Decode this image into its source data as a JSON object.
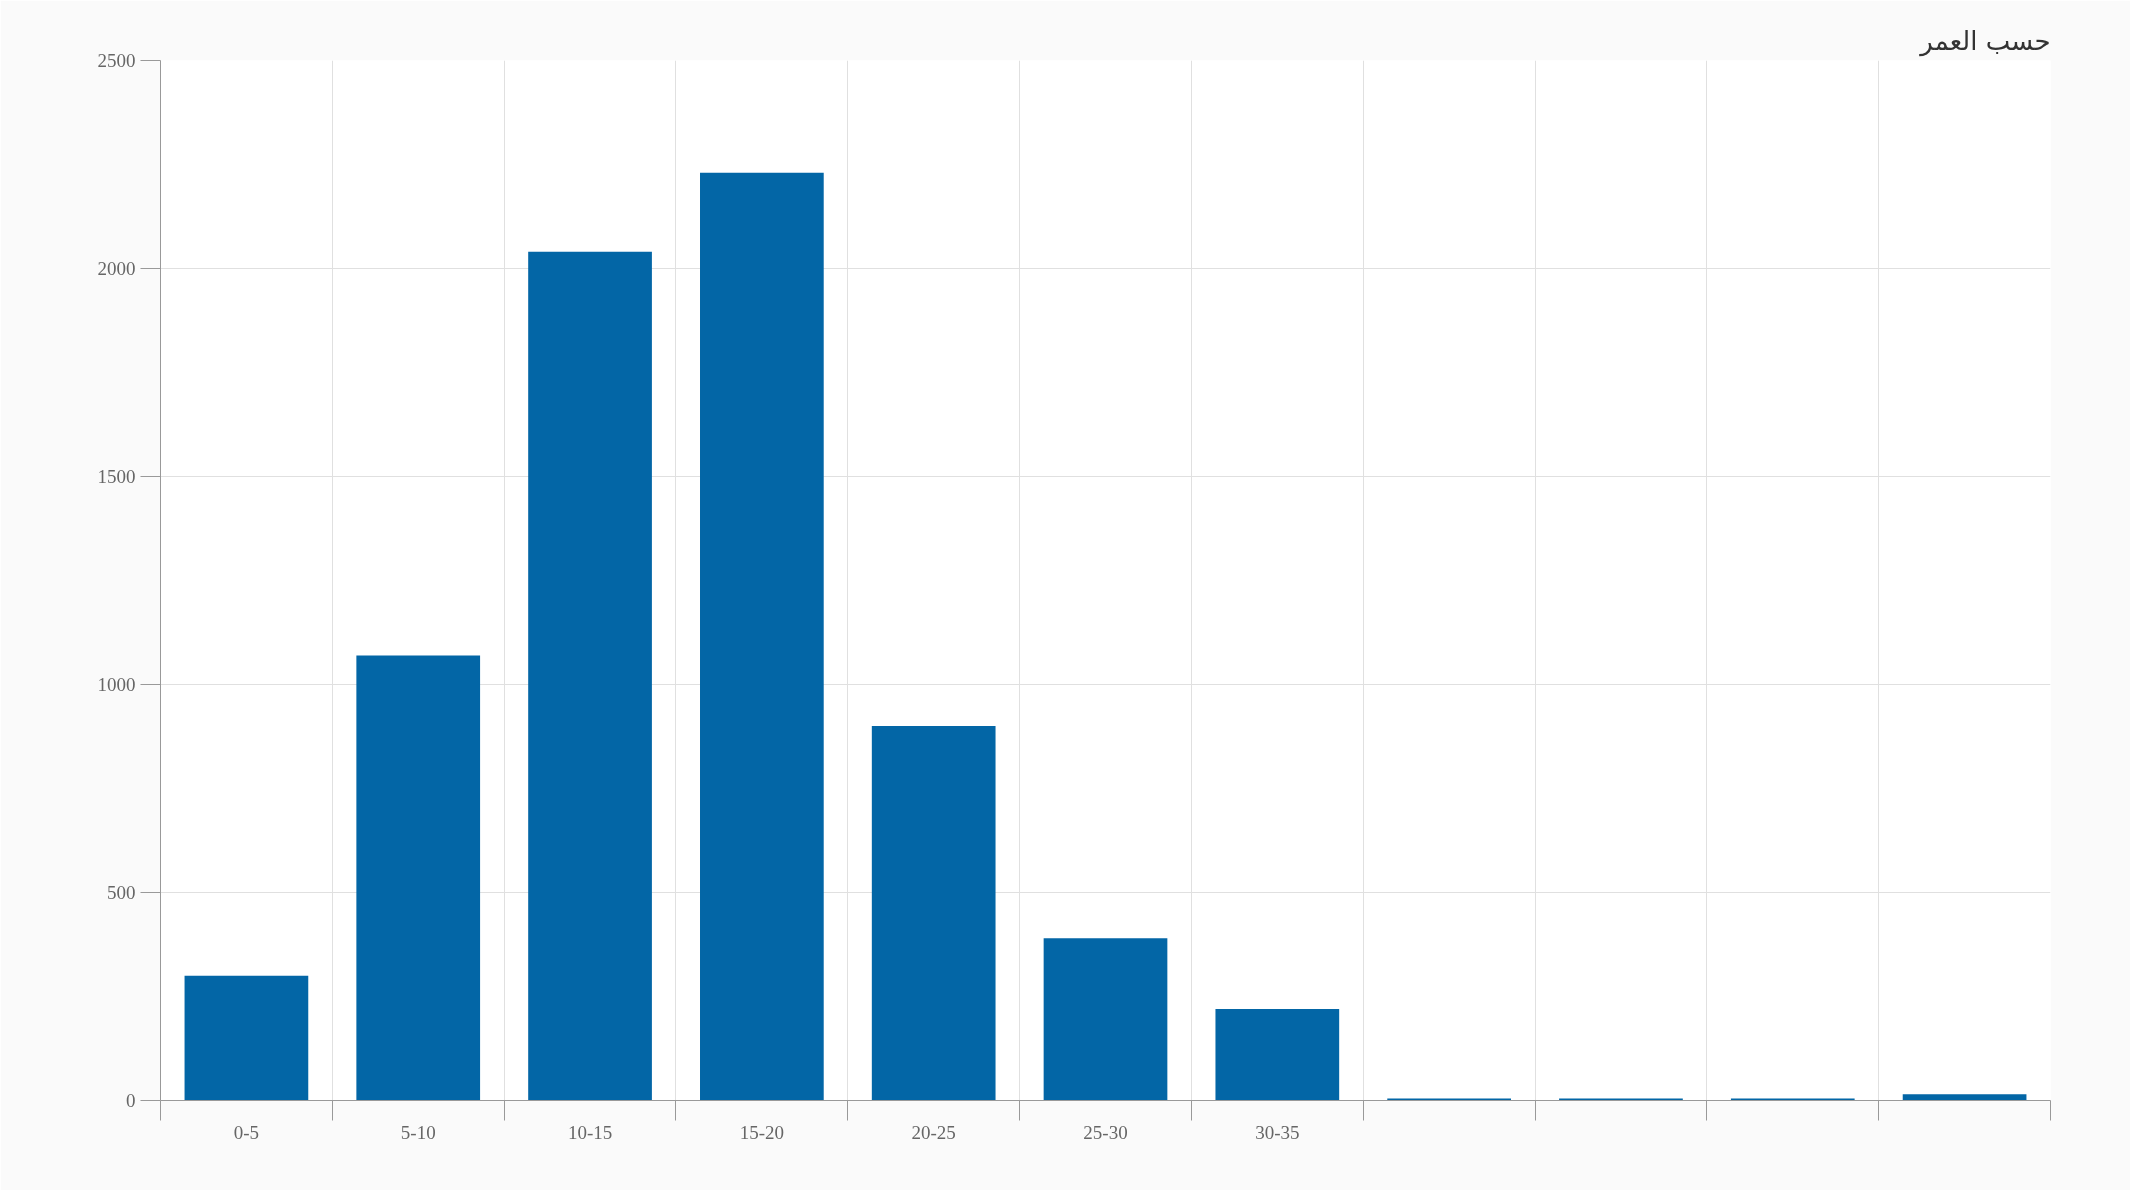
{
  "chart_data": {
    "type": "bar",
    "title": "حسب العمر",
    "categories": [
      "0-5",
      "5-10",
      "10-15",
      "15-20",
      "20-25",
      "25-30",
      "30-35",
      null,
      null,
      null,
      null
    ],
    "values": [
      300,
      1070,
      2040,
      2230,
      900,
      390,
      220,
      5,
      5,
      5,
      15
    ],
    "color": "#0366a6",
    "ylim": [
      0,
      2500
    ],
    "yticks": [
      0,
      500,
      1000,
      1500,
      2000,
      2500
    ],
    "grid": true
  }
}
